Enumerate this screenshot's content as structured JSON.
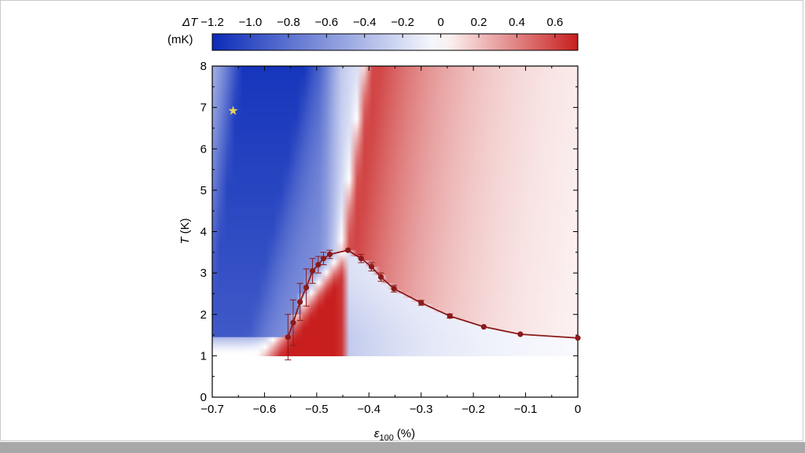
{
  "chart_data": {
    "type": "heatmap",
    "colorbar": {
      "label_symbol": "ΔT",
      "label_unit": "(mK)",
      "ticks": [
        "−1.2",
        "−1.0",
        "−0.8",
        "−0.6",
        "−0.4",
        "−0.2",
        "0",
        "0.2",
        "0.4",
        "0.6"
      ],
      "tick_values": [
        -1.2,
        -1.0,
        -0.8,
        -0.6,
        -0.4,
        -0.2,
        0,
        0.2,
        0.4,
        0.6
      ],
      "range": [
        -1.2,
        0.72
      ],
      "colors": {
        "negative": "#0a2bb8",
        "zero": "#ffffff",
        "positive": "#c81e1e"
      }
    },
    "x_axis": {
      "label_symbol": "ε",
      "label_subscript": "100",
      "label_unit": "(%)",
      "ticks": [
        "−0.7",
        "−0.6",
        "−0.5",
        "−0.4",
        "−0.3",
        "−0.2",
        "−0.1",
        "0"
      ],
      "tick_values": [
        -0.7,
        -0.6,
        -0.5,
        -0.4,
        -0.3,
        -0.2,
        -0.1,
        0
      ],
      "range": [
        -0.7,
        0
      ]
    },
    "y_axis": {
      "label_symbol": "T",
      "label_unit": "(K)",
      "ticks": [
        "0",
        "1",
        "2",
        "3",
        "4",
        "5",
        "6",
        "7",
        "8"
      ],
      "tick_values": [
        0,
        1,
        2,
        3,
        4,
        5,
        6,
        7,
        8
      ],
      "range": [
        0,
        8
      ]
    },
    "heatmap_T_range": [
      1,
      8
    ],
    "series": [
      {
        "color": "#8b1a1a",
        "x": [
          -0.555,
          -0.545,
          -0.532,
          -0.52,
          -0.508,
          -0.497,
          -0.487,
          -0.475,
          -0.44,
          -0.415,
          -0.395,
          -0.377,
          -0.352,
          -0.3,
          -0.245,
          -0.18,
          -0.11,
          0
        ],
        "y": [
          1.45,
          1.8,
          2.3,
          2.65,
          3.05,
          3.2,
          3.35,
          3.45,
          3.55,
          3.35,
          3.15,
          2.9,
          2.62,
          2.28,
          1.96,
          1.7,
          1.52,
          1.43
        ],
        "err": [
          0.55,
          0.55,
          0.45,
          0.45,
          0.3,
          0.2,
          0.15,
          0.1,
          0.03,
          0.1,
          0.1,
          0.1,
          0.08,
          0.06,
          0.05,
          0.03,
          0.03,
          0.03
        ]
      }
    ],
    "marker": {
      "symbol": "★",
      "x": -0.66,
      "y": 6.9,
      "color": "#e7d45a"
    }
  }
}
